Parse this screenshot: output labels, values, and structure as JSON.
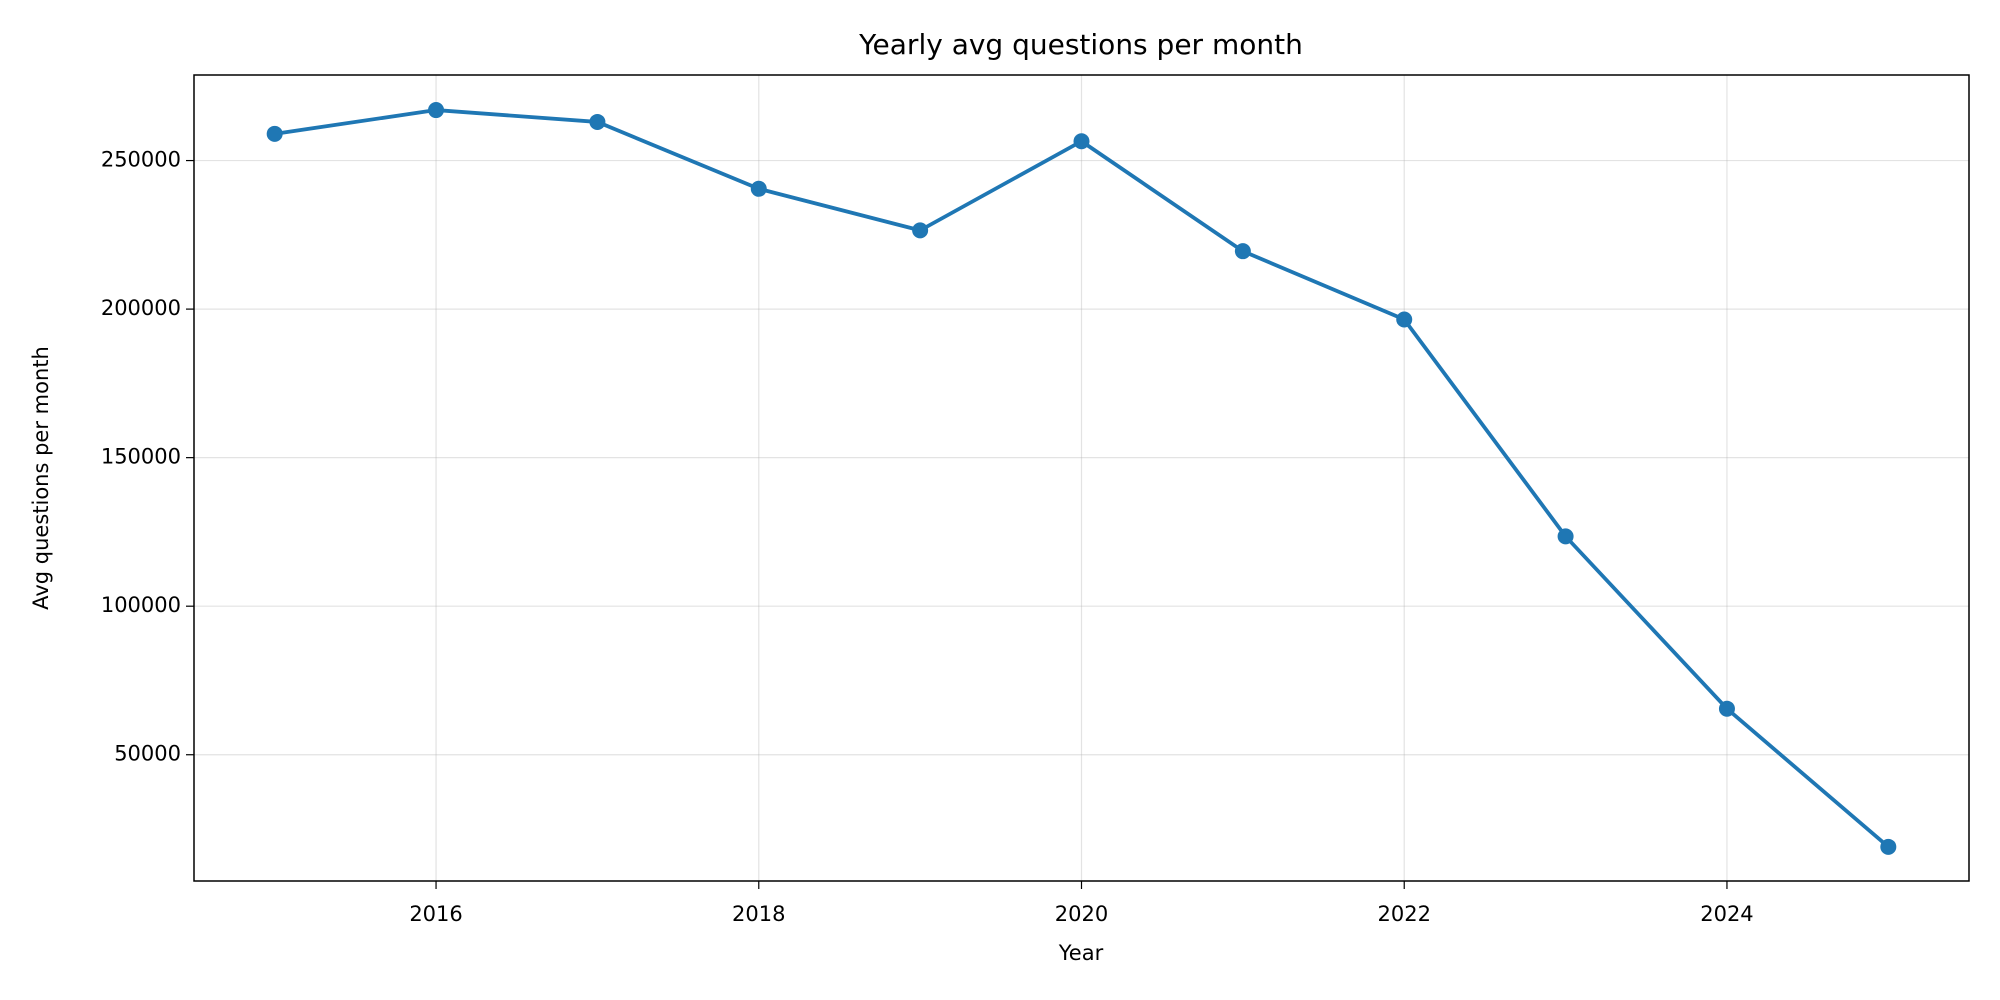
{
  "chart_data": {
    "type": "line",
    "title": "Yearly avg questions per month",
    "x_label": "Year",
    "y_label": "Avg questions per month",
    "x": [
      2015,
      2016,
      2017,
      2018,
      2019,
      2020,
      2021,
      2022,
      2023,
      2024,
      2025
    ],
    "series": [
      {
        "name": "Avg questions per month",
        "color": "#1f77b4",
        "values": [
          259000,
          267000,
          263000,
          240500,
          226500,
          256500,
          219500,
          196500,
          123500,
          65500,
          19000
        ]
      }
    ],
    "xlim": [
      2014.5,
      2025.5
    ],
    "xticks": [
      2016,
      2018,
      2020,
      2022,
      2024
    ],
    "ylim": [
      7500,
      278800
    ],
    "yticks": [
      50000,
      100000,
      150000,
      200000,
      250000
    ],
    "grid": true
  }
}
